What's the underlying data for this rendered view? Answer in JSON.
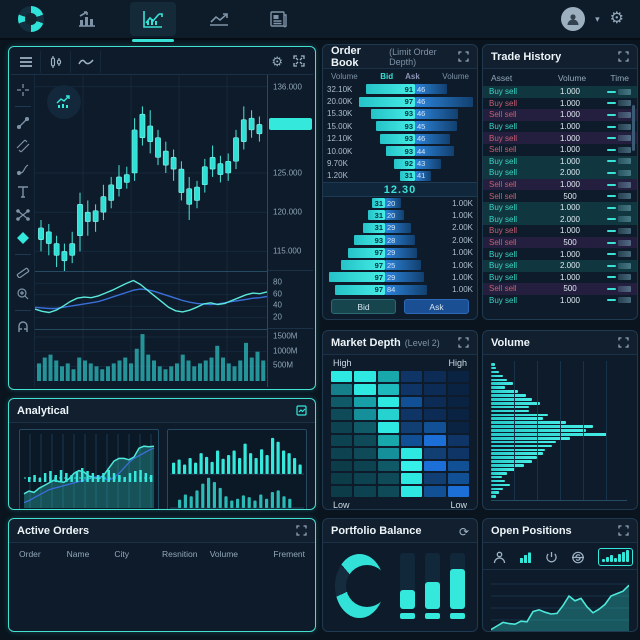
{
  "colors": {
    "accent": "#35e8dc",
    "blue": "#2c85dd",
    "buy_text": "#3bd6c4",
    "sell_text": "#c75f72",
    "panel_bg": "#0d1b2a",
    "grid": "#17334a"
  },
  "navbar": {
    "tabs": [
      {
        "name": "analytics"
      },
      {
        "name": "chart",
        "active": true
      },
      {
        "name": "trends"
      },
      {
        "name": "news"
      }
    ]
  },
  "chart_panel": {
    "price_axis": [
      {
        "label": "136.000",
        "value": 136
      },
      {
        "label": "125.000",
        "value": 125
      },
      {
        "label": "120.000",
        "value": 120
      },
      {
        "label": "115.000",
        "value": 115
      }
    ],
    "price_tag_value": 131.2,
    "rsi_axis": [
      {
        "label": "80",
        "value": 80
      },
      {
        "label": "60",
        "value": 60
      },
      {
        "label": "40",
        "value": 40
      },
      {
        "label": "20",
        "value": 20
      }
    ],
    "volume_axis": [
      {
        "label": "1500M",
        "value": 1500
      },
      {
        "label": "1000M",
        "value": 1000
      },
      {
        "label": "500M",
        "value": 500
      }
    ],
    "candles": [
      [
        116.5,
        118,
        115,
        119
      ],
      [
        117.5,
        116,
        114.5,
        118.5
      ],
      [
        116,
        114.5,
        113,
        117
      ],
      [
        115,
        113.8,
        112.5,
        116
      ],
      [
        114.5,
        116,
        113.5,
        117.5
      ],
      [
        117,
        121,
        115,
        122.5
      ],
      [
        120,
        118.8,
        117,
        121.5
      ],
      [
        118.8,
        120.2,
        117.5,
        121
      ],
      [
        120,
        122,
        119,
        123.5
      ],
      [
        121.5,
        123.5,
        120.5,
        124.5
      ],
      [
        123,
        124.5,
        122,
        126
      ],
      [
        123.8,
        124.8,
        123,
        125.8
      ],
      [
        125,
        130.5,
        124,
        132
      ],
      [
        129.5,
        132.5,
        128.5,
        133.5
      ],
      [
        131,
        129,
        127.5,
        133
      ],
      [
        129.5,
        127,
        126,
        130.5
      ],
      [
        127.8,
        126,
        125,
        129
      ],
      [
        127,
        125.5,
        124,
        128
      ],
      [
        125.5,
        122.5,
        121.5,
        126.5
      ],
      [
        123,
        121,
        119,
        124.5
      ],
      [
        121.5,
        123.2,
        120.5,
        124
      ],
      [
        123.5,
        125.8,
        122.5,
        126.8
      ],
      [
        125.5,
        127,
        124.5,
        128.5
      ],
      [
        126.2,
        124.8,
        123.8,
        127.2
      ],
      [
        125,
        126.5,
        124,
        127.5
      ],
      [
        126.5,
        129.5,
        125.5,
        130.5
      ],
      [
        129,
        131.8,
        128,
        133.5
      ],
      [
        132,
        130.5,
        129.5,
        133
      ],
      [
        130,
        131.2,
        129,
        132.2
      ]
    ],
    "rsi_teal": [
      35,
      31,
      29,
      33,
      40,
      48,
      54,
      56,
      55,
      58,
      63,
      68,
      74,
      80,
      85,
      78,
      68,
      58,
      48,
      38,
      32,
      30,
      33,
      38,
      44,
      46,
      43,
      45,
      50,
      55,
      60,
      63,
      62,
      65
    ],
    "rsi_blue": [
      38,
      37,
      36,
      36,
      38,
      40,
      42,
      44,
      46,
      48,
      52,
      56,
      60,
      64,
      68,
      70,
      69,
      66,
      62,
      58,
      54,
      50,
      47,
      45,
      44,
      43,
      44,
      46,
      48,
      50,
      52,
      54,
      55,
      57
    ],
    "volume_bars": [
      600,
      800,
      900,
      700,
      500,
      600,
      400,
      800,
      700,
      600,
      500,
      400,
      500,
      600,
      700,
      800,
      600,
      1100,
      1600,
      900,
      700,
      500,
      400,
      500,
      600,
      900,
      700,
      500,
      600,
      700,
      800,
      1200,
      800,
      600,
      500,
      700,
      1300,
      800,
      1000,
      700
    ]
  },
  "order_book": {
    "title": "Order Book",
    "subtitle": "(Limit Order Depth)",
    "headers": {
      "vol_left": "Volume",
      "bid": "Bid",
      "ask": "Ask",
      "vol_right": "Volume"
    },
    "mid_price": "12.30",
    "bids": [
      {
        "volume": "32.10K",
        "bid": "91",
        "ask": "46",
        "bw": 85,
        "aw": 55
      },
      {
        "volume": "20.00K",
        "bid": "97",
        "ask": "46",
        "bw": 97,
        "aw": 100
      },
      {
        "volume": "15.30K",
        "bid": "93",
        "ask": "46",
        "bw": 76,
        "aw": 74
      },
      {
        "volume": "15.00K",
        "bid": "93",
        "ask": "45",
        "bw": 68,
        "aw": 72
      },
      {
        "volume": "12.10K",
        "bid": "93",
        "ask": "46",
        "bw": 60,
        "aw": 60
      },
      {
        "volume": "10.00K",
        "bid": "93",
        "ask": "44",
        "bw": 50,
        "aw": 67
      },
      {
        "volume": "9.70K",
        "bid": "92",
        "ask": "43",
        "bw": 36,
        "aw": 45
      },
      {
        "volume": "1.20K",
        "bid": "31",
        "ask": "41",
        "bw": 26,
        "aw": 28
      }
    ],
    "asks": [
      {
        "bid": "31",
        "ask": "20",
        "volume": "1.00K",
        "bw": 22,
        "aw": 28
      },
      {
        "bid": "31",
        "ask": "20",
        "volume": "1.00K",
        "bw": 30,
        "aw": 32
      },
      {
        "bid": "31",
        "ask": "29",
        "volume": "2.00K",
        "bw": 38,
        "aw": 44
      },
      {
        "bid": "93",
        "ask": "28",
        "volume": "2.00K",
        "bw": 54,
        "aw": 52
      },
      {
        "bid": "97",
        "ask": "29",
        "volume": "1.00K",
        "bw": 64,
        "aw": 56
      },
      {
        "bid": "97",
        "ask": "25",
        "volume": "1.00K",
        "bw": 76,
        "aw": 62
      },
      {
        "bid": "97",
        "ask": "29",
        "volume": "1.00K",
        "bw": 96,
        "aw": 68
      },
      {
        "bid": "97",
        "ask": "84",
        "volume": "1.00K",
        "bw": 86,
        "aw": 72
      }
    ],
    "buttons": {
      "bid": "Bid",
      "ask": "Ask"
    }
  },
  "trade_history": {
    "title": "Trade History",
    "headers": {
      "asset": "Asset",
      "volume": "Volume",
      "time": "Time"
    },
    "rows": [
      {
        "asset": "Buy sell",
        "volume": "1.000",
        "side": "buy",
        "bg": "teal"
      },
      {
        "asset": "Buy sell",
        "volume": "1.000",
        "side": "sell",
        "bg": "dark"
      },
      {
        "asset": "Sell sell",
        "volume": "1.000",
        "side": "sell",
        "bg": "purple"
      },
      {
        "asset": "Buy sell",
        "volume": "1.000",
        "side": "buy",
        "bg": "dark"
      },
      {
        "asset": "Buy sell",
        "volume": "1.000",
        "side": "sell",
        "bg": "purple"
      },
      {
        "asset": "Sell sell",
        "volume": "1.000",
        "side": "sell",
        "bg": "dark"
      },
      {
        "asset": "Buy sell",
        "volume": "1.000",
        "side": "buy",
        "bg": "teal"
      },
      {
        "asset": "Buy sell",
        "volume": "2.000",
        "side": "buy",
        "bg": "teal"
      },
      {
        "asset": "Sell sell",
        "volume": "1.000",
        "side": "sell",
        "bg": "purple"
      },
      {
        "asset": "Sell sell",
        "volume": "500",
        "side": "sell",
        "bg": "dark"
      },
      {
        "asset": "Buy sell",
        "volume": "1.000",
        "side": "buy",
        "bg": "teal"
      },
      {
        "asset": "Buy sell",
        "volume": "2.000",
        "side": "buy",
        "bg": "teal"
      },
      {
        "asset": "Buy sell",
        "volume": "1.000",
        "side": "sell",
        "bg": "dark"
      },
      {
        "asset": "Sell sell",
        "volume": "500",
        "side": "sell",
        "bg": "purple"
      },
      {
        "asset": "Buy sell",
        "volume": "1.000",
        "side": "buy",
        "bg": "dark"
      },
      {
        "asset": "Buy sell",
        "volume": "2.000",
        "side": "buy",
        "bg": "teal"
      },
      {
        "asset": "Buy sell",
        "volume": "1.000",
        "side": "buy",
        "bg": "dark"
      },
      {
        "asset": "Sell sell",
        "volume": "500",
        "side": "sell",
        "bg": "purple"
      },
      {
        "asset": "Buy sell",
        "volume": "1.000",
        "side": "buy",
        "bg": "dark"
      }
    ]
  },
  "market_depth": {
    "title": "Market Depth",
    "subtitle": "(Level 2)",
    "top_left": "High",
    "top_right": "High",
    "bottom_left": "Low",
    "bottom_right": "Low",
    "grid": [
      [
        "#2ee9e2",
        "#2ee9e2",
        "#18a8ac",
        "#0e3566",
        "#0c2c55",
        "#0a2342"
      ],
      [
        "#16808a",
        "#2ee9e2",
        "#1db9bd",
        "#0e3566",
        "#0c2c55",
        "#0a2342"
      ],
      [
        "#0f5a66",
        "#18a0a8",
        "#2ee9e2",
        "#115094",
        "#0c2c55",
        "#0a2342"
      ],
      [
        "#0e4a58",
        "#15909a",
        "#25d2d0",
        "#0e3566",
        "#0c2c55",
        "#0a2342"
      ],
      [
        "#0d4350",
        "#0f5a66",
        "#2ee9e2",
        "#123f73",
        "#115094",
        "#0a2342"
      ],
      [
        "#0d4350",
        "#0e4a58",
        "#18a8ac",
        "#115094",
        "#1b6fd6",
        "#0e3566"
      ],
      [
        "#0d4350",
        "#0e4a58",
        "#15909a",
        "#2ee9e2",
        "#123f73",
        "#0e3566"
      ],
      [
        "#0c3c48",
        "#0d4350",
        "#0f5a66",
        "#35f0e8",
        "#1b6fd6",
        "#115094"
      ],
      [
        "#0c3c48",
        "#0d4350",
        "#0e4a58",
        "#2ee9e2",
        "#123f73",
        "#115094"
      ],
      [
        "#0c3c48",
        "#0d4350",
        "#0e4a58",
        "#2ee9e2",
        "#115094",
        "#1b6fd6"
      ]
    ]
  },
  "volume_panel": {
    "title": "Volume",
    "bars": [
      3,
      4,
      6,
      9,
      12,
      16,
      10,
      20,
      26,
      30,
      36,
      28,
      28,
      42,
      38,
      55,
      75,
      70,
      85,
      58,
      48,
      45,
      40,
      38,
      34,
      30,
      24,
      18,
      12,
      8,
      10,
      14,
      9,
      6,
      4
    ]
  },
  "analytical": {
    "title": "Analytical",
    "left_chart": {
      "type": "area+line+bars",
      "teal_area": [
        18,
        22,
        20,
        26,
        30,
        34,
        38,
        36,
        35,
        40,
        48,
        52,
        50,
        44,
        42,
        40,
        46,
        56,
        66,
        70,
        70,
        68,
        72,
        85,
        88,
        87,
        88
      ],
      "blue_line": [
        5,
        8,
        12,
        16,
        20,
        24,
        26,
        28,
        30,
        32,
        34,
        36,
        38,
        40,
        42,
        44,
        40,
        38,
        42,
        48,
        56,
        64,
        70,
        74,
        78,
        82,
        85
      ],
      "mid_bars": [
        5,
        7,
        4,
        9,
        11,
        7,
        12,
        9,
        7,
        11,
        14,
        11,
        9,
        7,
        9,
        12,
        9,
        7,
        5,
        9,
        11,
        12,
        9,
        7
      ]
    },
    "right_chart": {
      "type": "bar",
      "top_bars": [
        30,
        38,
        25,
        42,
        30,
        55,
        45,
        32,
        62,
        40,
        50,
        62,
        42,
        80,
        55,
        42,
        65,
        50,
        95,
        85,
        62,
        55,
        42,
        25
      ],
      "bottom_bars": [
        20,
        32,
        28,
        42,
        58,
        72,
        62,
        48,
        28,
        18,
        22,
        30,
        26,
        18,
        32,
        22,
        38,
        42,
        28,
        22
      ]
    }
  },
  "active_orders": {
    "title": "Active Orders",
    "headers": [
      "Order",
      "Name",
      "City",
      "Resnition",
      "Volume",
      "Frement"
    ]
  },
  "portfolio": {
    "title": "Portfolio Balance",
    "donut_filled_deg": 285,
    "bars": [
      34,
      48,
      72
    ]
  },
  "open_positions": {
    "title": "Open Positions",
    "spark_btn_bars": [
      3,
      5,
      7,
      4,
      8,
      10,
      12
    ],
    "line": [
      14,
      20,
      26,
      24,
      23,
      28,
      27,
      44,
      47,
      43,
      40,
      41,
      54,
      70,
      62,
      66,
      52,
      42,
      48,
      56,
      70,
      74,
      78,
      88
    ]
  }
}
